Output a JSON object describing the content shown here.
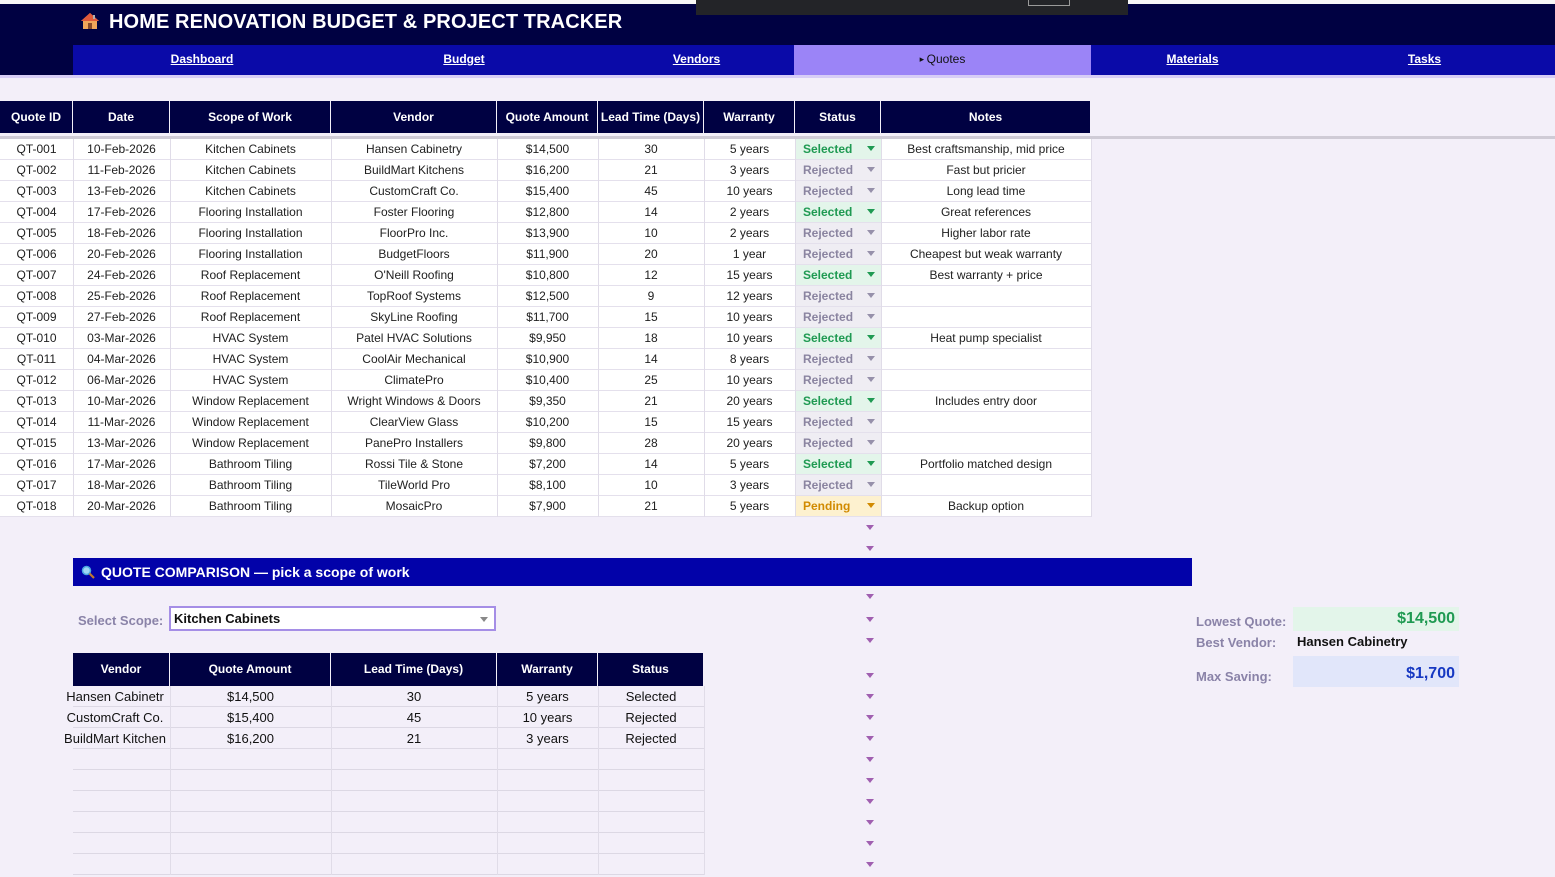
{
  "app": {
    "title": "HOME RENOVATION BUDGET & PROJECT TRACKER"
  },
  "nav": {
    "tabs": [
      {
        "label": "Dashboard",
        "active": false
      },
      {
        "label": "Budget",
        "active": false
      },
      {
        "label": "Vendors",
        "active": false
      },
      {
        "label": "Quotes",
        "active": true
      },
      {
        "label": "Materials",
        "active": false
      },
      {
        "label": "Tasks",
        "active": false
      }
    ]
  },
  "quotes": {
    "columns": [
      "Quote ID",
      "Date",
      "Scope of Work",
      "Vendor",
      "Quote Amount",
      "Lead Time (Days)",
      "Warranty",
      "Status",
      "Notes"
    ],
    "rows": [
      [
        "QT-001",
        "10-Feb-2026",
        "Kitchen Cabinets",
        "Hansen Cabinetry",
        "$14,500",
        "30",
        "5 years",
        "Selected",
        "Best craftsmanship, mid price"
      ],
      [
        "QT-002",
        "11-Feb-2026",
        "Kitchen Cabinets",
        "BuildMart Kitchens",
        "$16,200",
        "21",
        "3 years",
        "Rejected",
        "Fast but pricier"
      ],
      [
        "QT-003",
        "13-Feb-2026",
        "Kitchen Cabinets",
        "CustomCraft Co.",
        "$15,400",
        "45",
        "10 years",
        "Rejected",
        "Long lead time"
      ],
      [
        "QT-004",
        "17-Feb-2026",
        "Flooring Installation",
        "Foster Flooring",
        "$12,800",
        "14",
        "2 years",
        "Selected",
        "Great references"
      ],
      [
        "QT-005",
        "18-Feb-2026",
        "Flooring Installation",
        "FloorPro Inc.",
        "$13,900",
        "10",
        "2 years",
        "Rejected",
        "Higher labor rate"
      ],
      [
        "QT-006",
        "20-Feb-2026",
        "Flooring Installation",
        "BudgetFloors",
        "$11,900",
        "20",
        "1 year",
        "Rejected",
        "Cheapest but weak warranty"
      ],
      [
        "QT-007",
        "24-Feb-2026",
        "Roof Replacement",
        "O'Neill Roofing",
        "$10,800",
        "12",
        "15 years",
        "Selected",
        "Best warranty + price"
      ],
      [
        "QT-008",
        "25-Feb-2026",
        "Roof Replacement",
        "TopRoof Systems",
        "$12,500",
        "9",
        "12 years",
        "Rejected",
        ""
      ],
      [
        "QT-009",
        "27-Feb-2026",
        "Roof Replacement",
        "SkyLine Roofing",
        "$11,700",
        "15",
        "10 years",
        "Rejected",
        ""
      ],
      [
        "QT-010",
        "03-Mar-2026",
        "HVAC System",
        "Patel HVAC Solutions",
        "$9,950",
        "18",
        "10 years",
        "Selected",
        "Heat pump specialist"
      ],
      [
        "QT-011",
        "04-Mar-2026",
        "HVAC System",
        "CoolAir Mechanical",
        "$10,900",
        "14",
        "8 years",
        "Rejected",
        ""
      ],
      [
        "QT-012",
        "06-Mar-2026",
        "HVAC System",
        "ClimatePro",
        "$10,400",
        "25",
        "10 years",
        "Rejected",
        ""
      ],
      [
        "QT-013",
        "10-Mar-2026",
        "Window Replacement",
        "Wright Windows & Doors",
        "$9,350",
        "21",
        "20 years",
        "Selected",
        "Includes entry door"
      ],
      [
        "QT-014",
        "11-Mar-2026",
        "Window Replacement",
        "ClearView Glass",
        "$10,200",
        "15",
        "15 years",
        "Rejected",
        ""
      ],
      [
        "QT-015",
        "13-Mar-2026",
        "Window Replacement",
        "PanePro Installers",
        "$9,800",
        "28",
        "20 years",
        "Rejected",
        ""
      ],
      [
        "QT-016",
        "17-Mar-2026",
        "Bathroom Tiling",
        "Rossi Tile & Stone",
        "$7,200",
        "14",
        "5 years",
        "Selected",
        "Portfolio matched design"
      ],
      [
        "QT-017",
        "18-Mar-2026",
        "Bathroom Tiling",
        "TileWorld Pro",
        "$8,100",
        "10",
        "3 years",
        "Rejected",
        ""
      ],
      [
        "QT-018",
        "20-Mar-2026",
        "Bathroom Tiling",
        "MosaicPro",
        "$7,900",
        "21",
        "5 years",
        "Pending",
        "Backup option"
      ]
    ]
  },
  "comparison": {
    "banner": "QUOTE COMPARISON — pick a scope of work",
    "scope_label": "Select Scope:",
    "scope_value": "Kitchen Cabinets",
    "columns": [
      "Vendor",
      "Quote Amount",
      "Lead Time (Days)",
      "Warranty",
      "Status"
    ],
    "rows": [
      [
        "Hansen Cabinetr",
        "$14,500",
        "30",
        "5 years",
        "Selected"
      ],
      [
        "CustomCraft Co.",
        "$15,400",
        "45",
        "10 years",
        "Rejected"
      ],
      [
        "BuildMart Kitchen",
        "$16,200",
        "21",
        "3 years",
        "Rejected"
      ]
    ],
    "empty_rows": 6
  },
  "summary": {
    "lowest_label": "Lowest Quote:",
    "lowest_value": "$14,500",
    "vendor_label": "Best Vendor:",
    "vendor_value": "Hansen Cabinetry",
    "saving_label": "Max Saving:",
    "saving_value": "$1,700"
  },
  "colors": {
    "header_navy": "#000142",
    "nav_blue": "#0a0aa8",
    "nav_active": "#9b84f7",
    "selected_green": "#1f9a52",
    "rejected_gray": "#8a84a0",
    "pending_amber": "#d18a00"
  },
  "icons": {
    "title": "house-icon",
    "banner": "magnifier-icon",
    "status": "dropdown-arrow-icon"
  }
}
